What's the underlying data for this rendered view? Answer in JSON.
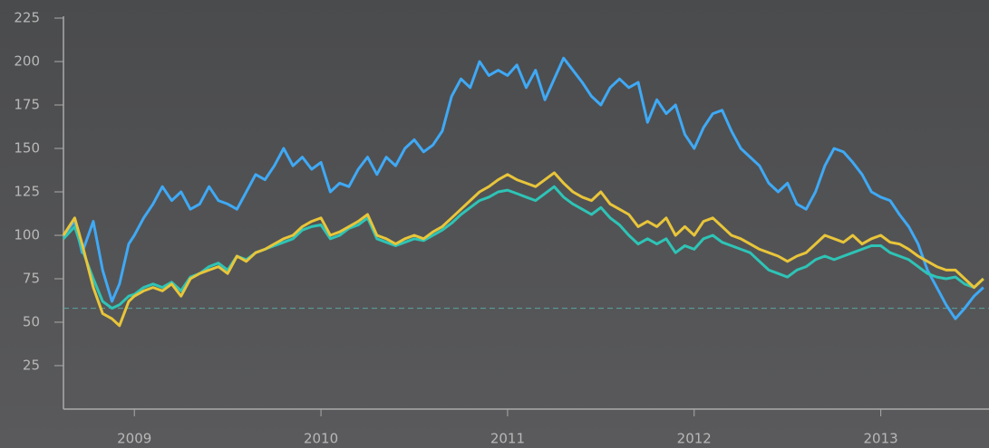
{
  "chart_data": {
    "type": "line",
    "x": [
      2008.62,
      2008.68,
      2008.72,
      2008.78,
      2008.83,
      2008.88,
      2008.92,
      2008.97,
      2009.0,
      2009.05,
      2009.1,
      2009.15,
      2009.2,
      2009.25,
      2009.3,
      2009.35,
      2009.4,
      2009.45,
      2009.5,
      2009.55,
      2009.6,
      2009.65,
      2009.7,
      2009.75,
      2009.8,
      2009.85,
      2009.9,
      2009.95,
      2010.0,
      2010.05,
      2010.1,
      2010.15,
      2010.2,
      2010.25,
      2010.3,
      2010.35,
      2010.4,
      2010.45,
      2010.5,
      2010.55,
      2010.6,
      2010.65,
      2010.7,
      2010.75,
      2010.8,
      2010.85,
      2010.9,
      2010.95,
      2011.0,
      2011.05,
      2011.1,
      2011.15,
      2011.2,
      2011.25,
      2011.3,
      2011.35,
      2011.4,
      2011.45,
      2011.5,
      2011.55,
      2011.6,
      2011.65,
      2011.7,
      2011.75,
      2011.8,
      2011.85,
      2011.9,
      2011.95,
      2012.0,
      2012.05,
      2012.1,
      2012.15,
      2012.2,
      2012.25,
      2012.3,
      2012.35,
      2012.4,
      2012.45,
      2012.5,
      2012.55,
      2012.6,
      2012.65,
      2012.7,
      2012.75,
      2012.8,
      2012.85,
      2012.9,
      2012.95,
      2013.0,
      2013.05,
      2013.1,
      2013.15,
      2013.2,
      2013.25,
      2013.3,
      2013.35,
      2013.4,
      2013.45,
      2013.5,
      2013.55
    ],
    "series": [
      {
        "color": "#3fa9f5",
        "values": [
          100,
          108,
          90,
          108,
          80,
          62,
          72,
          95,
          100,
          110,
          118,
          128,
          120,
          125,
          115,
          118,
          128,
          120,
          118,
          115,
          125,
          135,
          132,
          140,
          150,
          140,
          145,
          138,
          142,
          125,
          130,
          128,
          138,
          145,
          135,
          145,
          140,
          150,
          155,
          148,
          152,
          160,
          180,
          190,
          185,
          200,
          192,
          195,
          192,
          198,
          185,
          195,
          178,
          190,
          202,
          195,
          188,
          180,
          175,
          185,
          190,
          185,
          188,
          165,
          178,
          170,
          175,
          158,
          150,
          162,
          170,
          172,
          160,
          150,
          145,
          140,
          130,
          125,
          130,
          118,
          115,
          125,
          140,
          150,
          148,
          142,
          135,
          125,
          122,
          120,
          112,
          105,
          95,
          80,
          70,
          60,
          52,
          58,
          65,
          70
        ]
      },
      {
        "color": "#2ec4b6",
        "values": [
          98,
          105,
          92,
          75,
          62,
          58,
          60,
          65,
          66,
          70,
          72,
          70,
          73,
          68,
          76,
          78,
          82,
          84,
          80,
          88,
          86,
          90,
          92,
          94,
          96,
          98,
          103,
          105,
          106,
          98,
          100,
          104,
          106,
          110,
          98,
          96,
          94,
          96,
          98,
          97,
          100,
          103,
          107,
          112,
          116,
          120,
          122,
          125,
          126,
          124,
          122,
          120,
          124,
          128,
          122,
          118,
          115,
          112,
          116,
          110,
          106,
          100,
          95,
          98,
          95,
          98,
          90,
          94,
          92,
          98,
          100,
          96,
          94,
          92,
          90,
          85,
          80,
          78,
          76,
          80,
          82,
          86,
          88,
          86,
          88,
          90,
          92,
          94,
          94,
          90,
          88,
          86,
          82,
          78,
          76,
          75,
          76,
          72,
          70,
          75
        ]
      },
      {
        "color": "#e8c53a",
        "values": [
          100,
          110,
          95,
          70,
          55,
          52,
          48,
          62,
          65,
          68,
          70,
          68,
          72,
          65,
          75,
          78,
          80,
          82,
          78,
          88,
          85,
          90,
          92,
          95,
          98,
          100,
          105,
          108,
          110,
          100,
          102,
          105,
          108,
          112,
          100,
          98,
          95,
          98,
          100,
          98,
          102,
          105,
          110,
          115,
          120,
          125,
          128,
          132,
          135,
          132,
          130,
          128,
          132,
          136,
          130,
          125,
          122,
          120,
          125,
          118,
          115,
          112,
          105,
          108,
          105,
          110,
          100,
          105,
          100,
          108,
          110,
          105,
          100,
          98,
          95,
          92,
          90,
          88,
          85,
          88,
          90,
          95,
          100,
          98,
          96,
          100,
          95,
          98,
          100,
          96,
          95,
          92,
          88,
          85,
          82,
          80,
          80,
          75,
          70,
          75
        ]
      }
    ],
    "xlim": [
      2008.62,
      2013.58
    ],
    "xticks": [
      2009,
      2010,
      2011,
      2012,
      2013
    ],
    "ylim": [
      0,
      225
    ],
    "yticks": [
      25,
      50,
      75,
      100,
      125,
      150,
      175,
      200,
      225
    ],
    "hline": 58,
    "hline_color": "#5aa5a0",
    "grid": false
  }
}
